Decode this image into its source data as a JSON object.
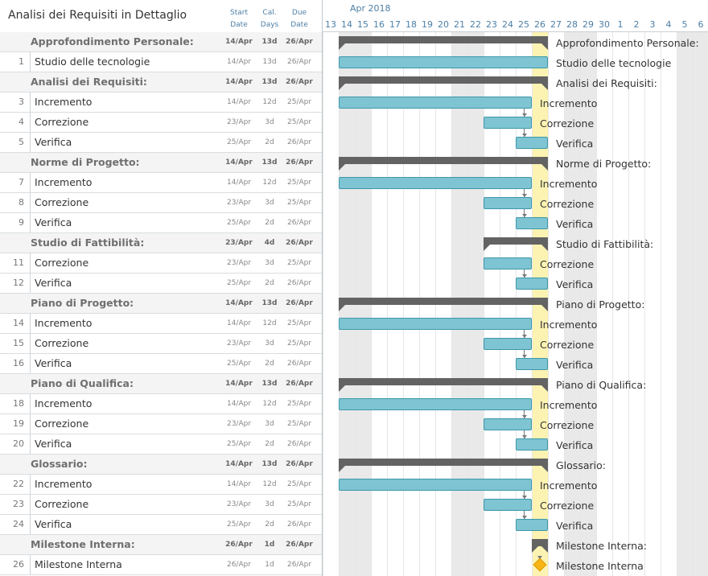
{
  "title": "Analisi dei Requisiti in Dettaglio",
  "headers": {
    "start": [
      "Start",
      "Date"
    ],
    "days": [
      "Cal.",
      "Days"
    ],
    "due": [
      "Due",
      "Date"
    ]
  },
  "timeline": {
    "month": "Apr 2018",
    "days": [
      "13",
      "14",
      "15",
      "16",
      "17",
      "18",
      "19",
      "20",
      "21",
      "22",
      "23",
      "24",
      "25",
      "26",
      "27",
      "28",
      "29",
      "30",
      "1",
      "2",
      "3",
      "4",
      "5",
      "6"
    ],
    "weekend_indices": [
      1,
      2,
      8,
      9,
      15,
      16,
      22,
      23
    ],
    "today_index": 13
  },
  "rows": [
    {
      "type": "group",
      "num": "",
      "name": "Approfondimento Personale:",
      "start": "14/Apr",
      "days": "13d",
      "due": "26/Apr",
      "s": 1,
      "e": 14
    },
    {
      "type": "task",
      "num": "1",
      "name": "Studio delle tecnologie",
      "start": "14/Apr",
      "days": "13d",
      "due": "26/Apr",
      "s": 1,
      "e": 14,
      "label_pos": "after"
    },
    {
      "type": "group",
      "num": "",
      "name": "Analisi dei Requisiti:",
      "start": "14/Apr",
      "days": "13d",
      "due": "26/Apr",
      "s": 1,
      "e": 14
    },
    {
      "type": "task",
      "num": "3",
      "name": "Incremento",
      "start": "14/Apr",
      "days": "12d",
      "due": "25/Apr",
      "s": 1,
      "e": 13
    },
    {
      "type": "task",
      "num": "4",
      "name": "Correzione",
      "start": "23/Apr",
      "days": "3d",
      "due": "25/Apr",
      "s": 10,
      "e": 13
    },
    {
      "type": "task",
      "num": "5",
      "name": "Verifica",
      "start": "25/Apr",
      "days": "2d",
      "due": "26/Apr",
      "s": 12,
      "e": 14
    },
    {
      "type": "group",
      "num": "",
      "name": "Norme di Progetto:",
      "start": "14/Apr",
      "days": "13d",
      "due": "26/Apr",
      "s": 1,
      "e": 14
    },
    {
      "type": "task",
      "num": "7",
      "name": "Incremento",
      "start": "14/Apr",
      "days": "12d",
      "due": "25/Apr",
      "s": 1,
      "e": 13
    },
    {
      "type": "task",
      "num": "8",
      "name": "Correzione",
      "start": "23/Apr",
      "days": "3d",
      "due": "25/Apr",
      "s": 10,
      "e": 13
    },
    {
      "type": "task",
      "num": "9",
      "name": "Verifica",
      "start": "25/Apr",
      "days": "2d",
      "due": "26/Apr",
      "s": 12,
      "e": 14
    },
    {
      "type": "group",
      "num": "",
      "name": "Studio di Fattibilità:",
      "start": "23/Apr",
      "days": "4d",
      "due": "26/Apr",
      "s": 10,
      "e": 14
    },
    {
      "type": "task",
      "num": "11",
      "name": "Correzione",
      "start": "23/Apr",
      "days": "3d",
      "due": "25/Apr",
      "s": 10,
      "e": 13
    },
    {
      "type": "task",
      "num": "12",
      "name": "Verifica",
      "start": "25/Apr",
      "days": "2d",
      "due": "26/Apr",
      "s": 12,
      "e": 14
    },
    {
      "type": "group",
      "num": "",
      "name": "Piano di Progetto:",
      "start": "14/Apr",
      "days": "13d",
      "due": "26/Apr",
      "s": 1,
      "e": 14
    },
    {
      "type": "task",
      "num": "14",
      "name": "Incremento",
      "start": "14/Apr",
      "days": "12d",
      "due": "25/Apr",
      "s": 1,
      "e": 13
    },
    {
      "type": "task",
      "num": "15",
      "name": "Correzione",
      "start": "23/Apr",
      "days": "3d",
      "due": "25/Apr",
      "s": 10,
      "e": 13
    },
    {
      "type": "task",
      "num": "16",
      "name": "Verifica",
      "start": "25/Apr",
      "days": "2d",
      "due": "26/Apr",
      "s": 12,
      "e": 14
    },
    {
      "type": "group",
      "num": "",
      "name": "Piano di Qualifica:",
      "start": "14/Apr",
      "days": "13d",
      "due": "26/Apr",
      "s": 1,
      "e": 14
    },
    {
      "type": "task",
      "num": "18",
      "name": "Incremento",
      "start": "14/Apr",
      "days": "12d",
      "due": "25/Apr",
      "s": 1,
      "e": 13
    },
    {
      "type": "task",
      "num": "19",
      "name": "Correzione",
      "start": "23/Apr",
      "days": "3d",
      "due": "25/Apr",
      "s": 10,
      "e": 13
    },
    {
      "type": "task",
      "num": "20",
      "name": "Verifica",
      "start": "25/Apr",
      "days": "2d",
      "due": "26/Apr",
      "s": 12,
      "e": 14
    },
    {
      "type": "group",
      "num": "",
      "name": "Glossario:",
      "start": "14/Apr",
      "days": "13d",
      "due": "26/Apr",
      "s": 1,
      "e": 14
    },
    {
      "type": "task",
      "num": "22",
      "name": "Incremento",
      "start": "14/Apr",
      "days": "12d",
      "due": "25/Apr",
      "s": 1,
      "e": 13
    },
    {
      "type": "task",
      "num": "23",
      "name": "Correzione",
      "start": "23/Apr",
      "days": "3d",
      "due": "25/Apr",
      "s": 10,
      "e": 13
    },
    {
      "type": "task",
      "num": "24",
      "name": "Verifica",
      "start": "25/Apr",
      "days": "2d",
      "due": "26/Apr",
      "s": 12,
      "e": 14
    },
    {
      "type": "group",
      "num": "",
      "name": "Milestone Interna:",
      "start": "26/Apr",
      "days": "1d",
      "due": "26/Apr",
      "s": 13,
      "e": 14
    },
    {
      "type": "milestone",
      "num": "26",
      "name": "Milestone Interna",
      "start": "26/Apr",
      "days": "1d",
      "due": "26/Apr",
      "s": 13,
      "e": 14
    }
  ],
  "colors": {
    "group_bar": "#636363",
    "task_bar": "#7ec4d2",
    "task_border": "#3d98aa",
    "milestone": "#f6b515",
    "today": "#fcf3b2",
    "weekend": "#e9e9e9",
    "header_text": "#4d7fa6"
  }
}
